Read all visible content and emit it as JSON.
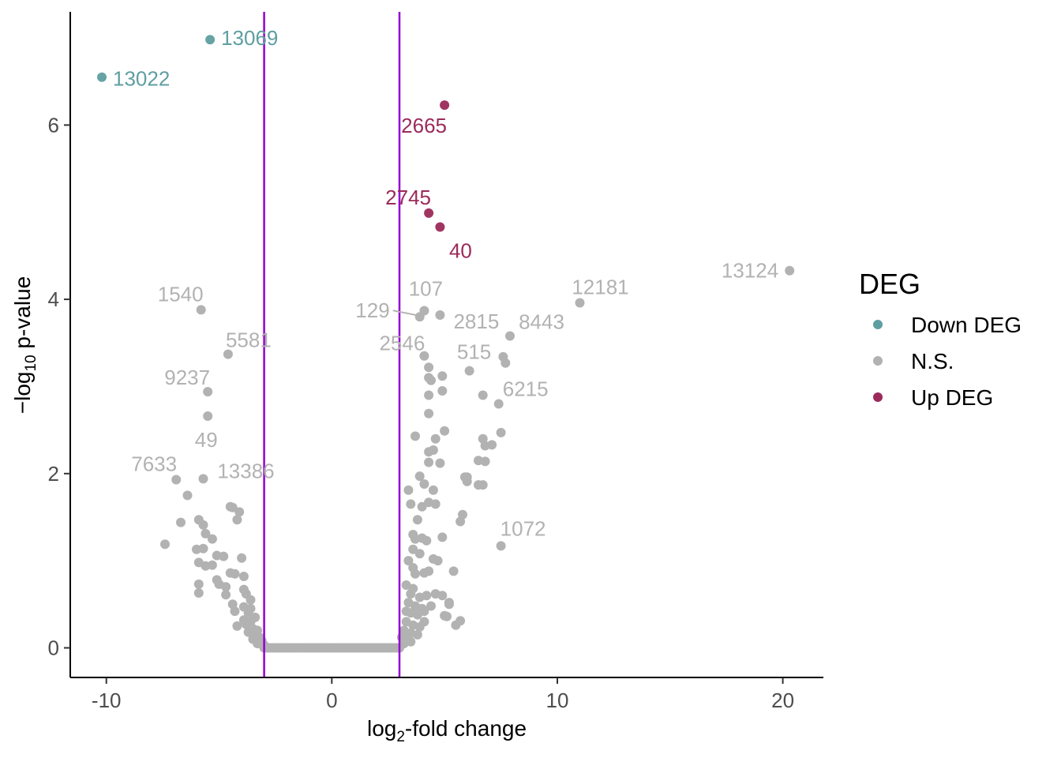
{
  "chart_data": {
    "type": "scatter",
    "title": "",
    "xlabel_base": "log",
    "xlabel_sub": "2",
    "xlabel_rest": "-fold change",
    "ylabel_prefix": "−log",
    "ylabel_sub": "10",
    "ylabel_rest": " p-value",
    "xlim": [
      -11.6,
      21.8
    ],
    "ylim": [
      -0.34,
      7.3
    ],
    "xticks": [
      -10,
      0,
      10,
      20
    ],
    "xtick_labels": [
      "-10",
      "0",
      "10",
      "20"
    ],
    "yticks": [
      0,
      2,
      4,
      6
    ],
    "ytick_labels": [
      "0",
      "2",
      "4",
      "6"
    ],
    "grid": false,
    "thresholds": {
      "x": [
        -3,
        3
      ],
      "color": "#9400D3"
    },
    "colors": {
      "Down DEG": "#5F9EA0",
      "N.S.": "#B2B2B2",
      "Up DEG": "#9B2A5A"
    },
    "legend": {
      "title": "DEG",
      "placement": "right",
      "entries": [
        "Down DEG",
        "N.S.",
        "Up DEG"
      ]
    },
    "series": [
      {
        "name": "Down DEG",
        "points": [
          [
            -5.4,
            6.98
          ],
          [
            -10.2,
            6.55
          ]
        ]
      },
      {
        "name": "Up DEG",
        "points": [
          [
            5.0,
            6.23
          ],
          [
            4.3,
            4.99
          ],
          [
            4.8,
            4.83
          ]
        ]
      },
      {
        "name": "N.S.",
        "points": [
          [
            20.3,
            4.33
          ],
          [
            11.0,
            3.96
          ],
          [
            7.9,
            3.58
          ],
          [
            7.6,
            3.34
          ],
          [
            7.7,
            3.27
          ],
          [
            6.1,
            3.18
          ],
          [
            6.7,
            2.9
          ],
          [
            7.4,
            2.8
          ],
          [
            7.5,
            2.47
          ],
          [
            6.7,
            2.4
          ],
          [
            6.8,
            2.32
          ],
          [
            7.1,
            2.33
          ],
          [
            6.5,
            2.15
          ],
          [
            6.8,
            2.14
          ],
          [
            5.9,
            1.96
          ],
          [
            6.0,
            1.96
          ],
          [
            6.5,
            1.87
          ],
          [
            6.7,
            1.87
          ],
          [
            6.0,
            1.91
          ],
          [
            5.8,
            1.53
          ],
          [
            5.7,
            1.45
          ],
          [
            7.5,
            1.17
          ],
          [
            5.4,
            0.88
          ],
          [
            5.7,
            0.31
          ],
          [
            5.5,
            0.26
          ],
          [
            5.2,
            0.5
          ],
          [
            5.0,
            0.37
          ],
          [
            5.1,
            0.36
          ],
          [
            4.1,
            3.87
          ],
          [
            3.9,
            3.8
          ],
          [
            4.8,
            3.82
          ],
          [
            4.1,
            3.35
          ],
          [
            4.3,
            3.22
          ],
          [
            4.3,
            3.1
          ],
          [
            4.4,
            3.07
          ],
          [
            4.9,
            3.12
          ],
          [
            4.9,
            2.95
          ],
          [
            4.3,
            2.9
          ],
          [
            4.3,
            2.69
          ],
          [
            5.0,
            2.49
          ],
          [
            4.6,
            2.4
          ],
          [
            3.7,
            2.43
          ],
          [
            4.3,
            2.25
          ],
          [
            4.5,
            2.27
          ],
          [
            4.3,
            2.13
          ],
          [
            4.8,
            2.12
          ],
          [
            3.9,
            1.97
          ],
          [
            4.1,
            1.88
          ],
          [
            3.4,
            1.81
          ],
          [
            4.5,
            1.81
          ],
          [
            3.5,
            1.65
          ],
          [
            4.0,
            1.62
          ],
          [
            4.3,
            1.67
          ],
          [
            4.6,
            1.65
          ],
          [
            3.8,
            1.47
          ],
          [
            3.6,
            1.3
          ],
          [
            3.7,
            1.25
          ],
          [
            4.0,
            1.26
          ],
          [
            4.2,
            1.23
          ],
          [
            4.9,
            1.27
          ],
          [
            3.6,
            1.13
          ],
          [
            3.9,
            1.08
          ],
          [
            4.5,
            1.02
          ],
          [
            4.7,
            1.0
          ],
          [
            3.4,
            1.0
          ],
          [
            3.6,
            0.92
          ],
          [
            3.7,
            0.85
          ],
          [
            4.1,
            0.86
          ],
          [
            4.3,
            0.88
          ],
          [
            3.3,
            0.72
          ],
          [
            3.6,
            0.68
          ],
          [
            3.5,
            0.62
          ],
          [
            3.9,
            0.58
          ],
          [
            4.2,
            0.6
          ],
          [
            4.6,
            0.62
          ],
          [
            4.9,
            0.6
          ],
          [
            5.2,
            0.52
          ],
          [
            3.4,
            0.52
          ],
          [
            3.7,
            0.48
          ],
          [
            4.0,
            0.45
          ],
          [
            4.4,
            0.48
          ],
          [
            4.1,
            0.42
          ],
          [
            3.3,
            0.42
          ],
          [
            3.5,
            0.4
          ],
          [
            3.8,
            0.38
          ],
          [
            4.1,
            0.3
          ],
          [
            3.3,
            0.3
          ],
          [
            3.6,
            0.26
          ],
          [
            3.9,
            0.24
          ],
          [
            3.2,
            0.2
          ],
          [
            3.5,
            0.17
          ],
          [
            3.8,
            0.15
          ],
          [
            3.1,
            0.12
          ],
          [
            3.3,
            0.1
          ],
          [
            3.5,
            0.07
          ],
          [
            3.2,
            0.05
          ],
          [
            -5.8,
            3.88
          ],
          [
            -4.6,
            3.37
          ],
          [
            -5.5,
            2.94
          ],
          [
            -5.5,
            2.66
          ],
          [
            -6.9,
            1.93
          ],
          [
            -5.7,
            1.94
          ],
          [
            -6.4,
            1.75
          ],
          [
            -4.5,
            1.62
          ],
          [
            -4.4,
            1.61
          ],
          [
            -4.1,
            1.56
          ],
          [
            -4.2,
            1.47
          ],
          [
            -5.9,
            1.47
          ],
          [
            -5.7,
            1.41
          ],
          [
            -6.7,
            1.44
          ],
          [
            -5.6,
            1.31
          ],
          [
            -5.3,
            1.25
          ],
          [
            -7.4,
            1.19
          ],
          [
            -6.0,
            1.13
          ],
          [
            -5.7,
            1.14
          ],
          [
            -5.1,
            1.06
          ],
          [
            -4.8,
            1.05
          ],
          [
            -4.0,
            1.03
          ],
          [
            -5.9,
            0.98
          ],
          [
            -5.3,
            0.95
          ],
          [
            -5.6,
            0.94
          ],
          [
            -4.5,
            0.86
          ],
          [
            -4.3,
            0.85
          ],
          [
            -3.9,
            0.82
          ],
          [
            -5.1,
            0.78
          ],
          [
            -5.0,
            0.73
          ],
          [
            -5.9,
            0.73
          ],
          [
            -4.7,
            0.7
          ],
          [
            -3.9,
            0.67
          ],
          [
            -3.8,
            0.62
          ],
          [
            -5.9,
            0.63
          ],
          [
            -4.7,
            0.61
          ],
          [
            -3.6,
            0.55
          ],
          [
            -4.4,
            0.5
          ],
          [
            -3.9,
            0.47
          ],
          [
            -3.6,
            0.45
          ],
          [
            -4.3,
            0.42
          ],
          [
            -3.7,
            0.4
          ],
          [
            -3.4,
            0.35
          ],
          [
            -3.9,
            0.32
          ],
          [
            -3.6,
            0.3
          ],
          [
            -3.8,
            0.27
          ],
          [
            -3.5,
            0.22
          ],
          [
            -3.3,
            0.2
          ],
          [
            -4.2,
            0.25
          ],
          [
            -3.7,
            0.18
          ],
          [
            -3.4,
            0.15
          ],
          [
            -3.2,
            0.12
          ],
          [
            -3.5,
            0.1
          ],
          [
            -3.1,
            0.08
          ],
          [
            -3.3,
            0.05
          ],
          [
            -3.0,
            0.03
          ]
        ]
      }
    ],
    "baseline_band": {
      "series": "N.S.",
      "x_from": -3.0,
      "x_to": 3.0,
      "y": 0.0
    },
    "labels": [
      {
        "text": "13069",
        "x": -5.4,
        "y": 6.98,
        "dx": 14,
        "dy": 0,
        "anchor": "start",
        "group": "Down DEG"
      },
      {
        "text": "13022",
        "x": -10.2,
        "y": 6.55,
        "dx": 14,
        "dy": 4,
        "anchor": "start",
        "group": "Down DEG"
      },
      {
        "text": "2665",
        "x": 5.0,
        "y": 6.23,
        "dx": -26,
        "dy": 28,
        "anchor": "middle",
        "group": "Up DEG"
      },
      {
        "text": "2745",
        "x": 4.3,
        "y": 4.99,
        "dx": -26,
        "dy": -18,
        "anchor": "middle",
        "group": "Up DEG"
      },
      {
        "text": "40",
        "x": 4.8,
        "y": 4.83,
        "dx": 26,
        "dy": 32,
        "anchor": "middle",
        "group": "Up DEG"
      },
      {
        "text": "13124",
        "x": 20.3,
        "y": 4.33,
        "dx": -14,
        "dy": 2,
        "anchor": "end",
        "group": "N.S."
      },
      {
        "text": "12181",
        "x": 11.0,
        "y": 3.96,
        "dx": 26,
        "dy": -18,
        "anchor": "middle",
        "group": "N.S."
      },
      {
        "text": "1540",
        "x": -5.8,
        "y": 3.88,
        "dx": -26,
        "dy": -18,
        "anchor": "middle",
        "group": "N.S."
      },
      {
        "text": "107",
        "x": 4.1,
        "y": 3.87,
        "dx": 2,
        "dy": -26,
        "anchor": "middle",
        "group": "N.S."
      },
      {
        "text": "129",
        "x": 3.9,
        "y": 3.8,
        "dx": -38,
        "dy": -6,
        "anchor": "end",
        "group": "N.S.",
        "leader": true
      },
      {
        "text": "2815",
        "x": 4.8,
        "y": 3.82,
        "dx": 46,
        "dy": 10,
        "anchor": "middle",
        "group": "N.S."
      },
      {
        "text": "8443",
        "x": 7.9,
        "y": 3.58,
        "dx": 40,
        "dy": -16,
        "anchor": "middle",
        "group": "N.S."
      },
      {
        "text": "5581",
        "x": -4.6,
        "y": 3.37,
        "dx": 26,
        "dy": -16,
        "anchor": "middle",
        "group": "N.S."
      },
      {
        "text": "2546",
        "x": 4.1,
        "y": 3.35,
        "dx": -28,
        "dy": -14,
        "anchor": "middle",
        "group": "N.S."
      },
      {
        "text": "515",
        "x": 6.1,
        "y": 3.18,
        "dx": 6,
        "dy": -22,
        "anchor": "middle",
        "group": "N.S."
      },
      {
        "text": "9237",
        "x": -5.5,
        "y": 2.94,
        "dx": -26,
        "dy": -16,
        "anchor": "middle",
        "group": "N.S."
      },
      {
        "text": "6215",
        "x": 6.7,
        "y": 2.9,
        "dx": 54,
        "dy": -6,
        "anchor": "middle",
        "group": "N.S."
      },
      {
        "text": "49",
        "x": -5.5,
        "y": 2.66,
        "dx": -2,
        "dy": 32,
        "anchor": "middle",
        "group": "N.S."
      },
      {
        "text": "7633",
        "x": -6.9,
        "y": 1.93,
        "dx": -28,
        "dy": -18,
        "anchor": "middle",
        "group": "N.S."
      },
      {
        "text": "13386",
        "x": -5.7,
        "y": 1.94,
        "dx": 54,
        "dy": -8,
        "anchor": "middle",
        "group": "N.S."
      },
      {
        "text": "1072",
        "x": 7.5,
        "y": 1.17,
        "dx": 28,
        "dy": -20,
        "anchor": "middle",
        "group": "N.S."
      }
    ]
  }
}
